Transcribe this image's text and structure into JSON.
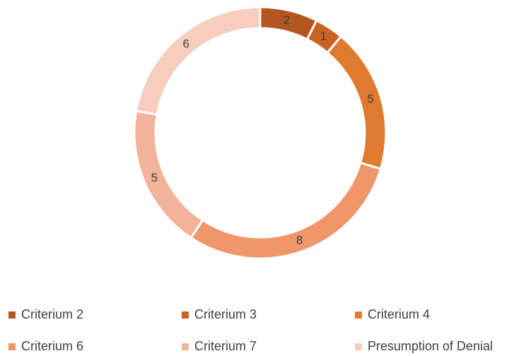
{
  "chart_data": {
    "type": "donut",
    "categories": [
      "Criterium 2",
      "Criterium 3",
      "Criterium 4",
      "Criterium 6",
      "Criterium 7",
      "Presumption of Denial"
    ],
    "values": [
      2,
      1,
      5,
      8,
      5,
      6
    ],
    "colors": [
      "#b4561f",
      "#cc6222",
      "#e07a30",
      "#ef976a",
      "#f2b39a",
      "#f8cdbf"
    ],
    "legend": "bottom"
  }
}
